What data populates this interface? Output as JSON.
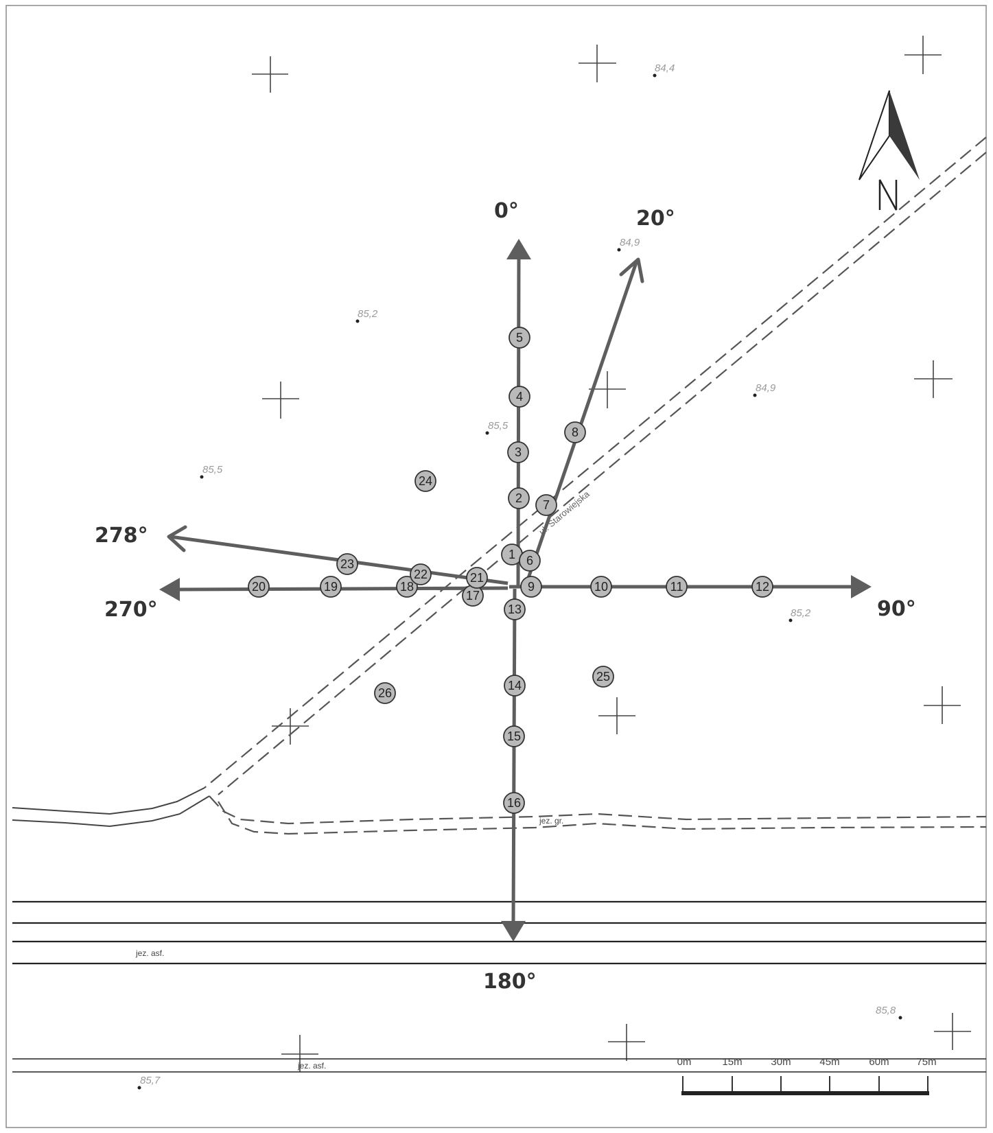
{
  "map": {
    "north_letter": "N",
    "directions": [
      {
        "id": "dir-0",
        "label": "0°",
        "angle": 0
      },
      {
        "id": "dir-20",
        "label": "20°",
        "angle": 20
      },
      {
        "id": "dir-90",
        "label": "90°",
        "angle": 90
      },
      {
        "id": "dir-180",
        "label": "180°",
        "angle": 180
      },
      {
        "id": "dir-270",
        "label": "270°",
        "angle": 270
      },
      {
        "id": "dir-278",
        "label": "278°",
        "angle": 278
      }
    ],
    "spot_heights": [
      "84,4",
      "84,9",
      "85,2",
      "84,9",
      "85,5",
      "85,5",
      "85,2",
      "85,8",
      "85,7"
    ],
    "points": [
      "1",
      "2",
      "3",
      "4",
      "5",
      "6",
      "7",
      "8",
      "9",
      "10",
      "11",
      "12",
      "13",
      "14",
      "15",
      "16",
      "17",
      "18",
      "19",
      "20",
      "21",
      "22",
      "23",
      "24",
      "25",
      "26"
    ],
    "labels": {
      "street": "ul. Starowiejska",
      "road_label_1": "jez. asf.",
      "road_label_2": "jez. asf.",
      "path_label": "jez. gr."
    },
    "scale_bar": {
      "labels": [
        "0m",
        "15m",
        "30m",
        "45m",
        "60m",
        "75m"
      ]
    }
  }
}
